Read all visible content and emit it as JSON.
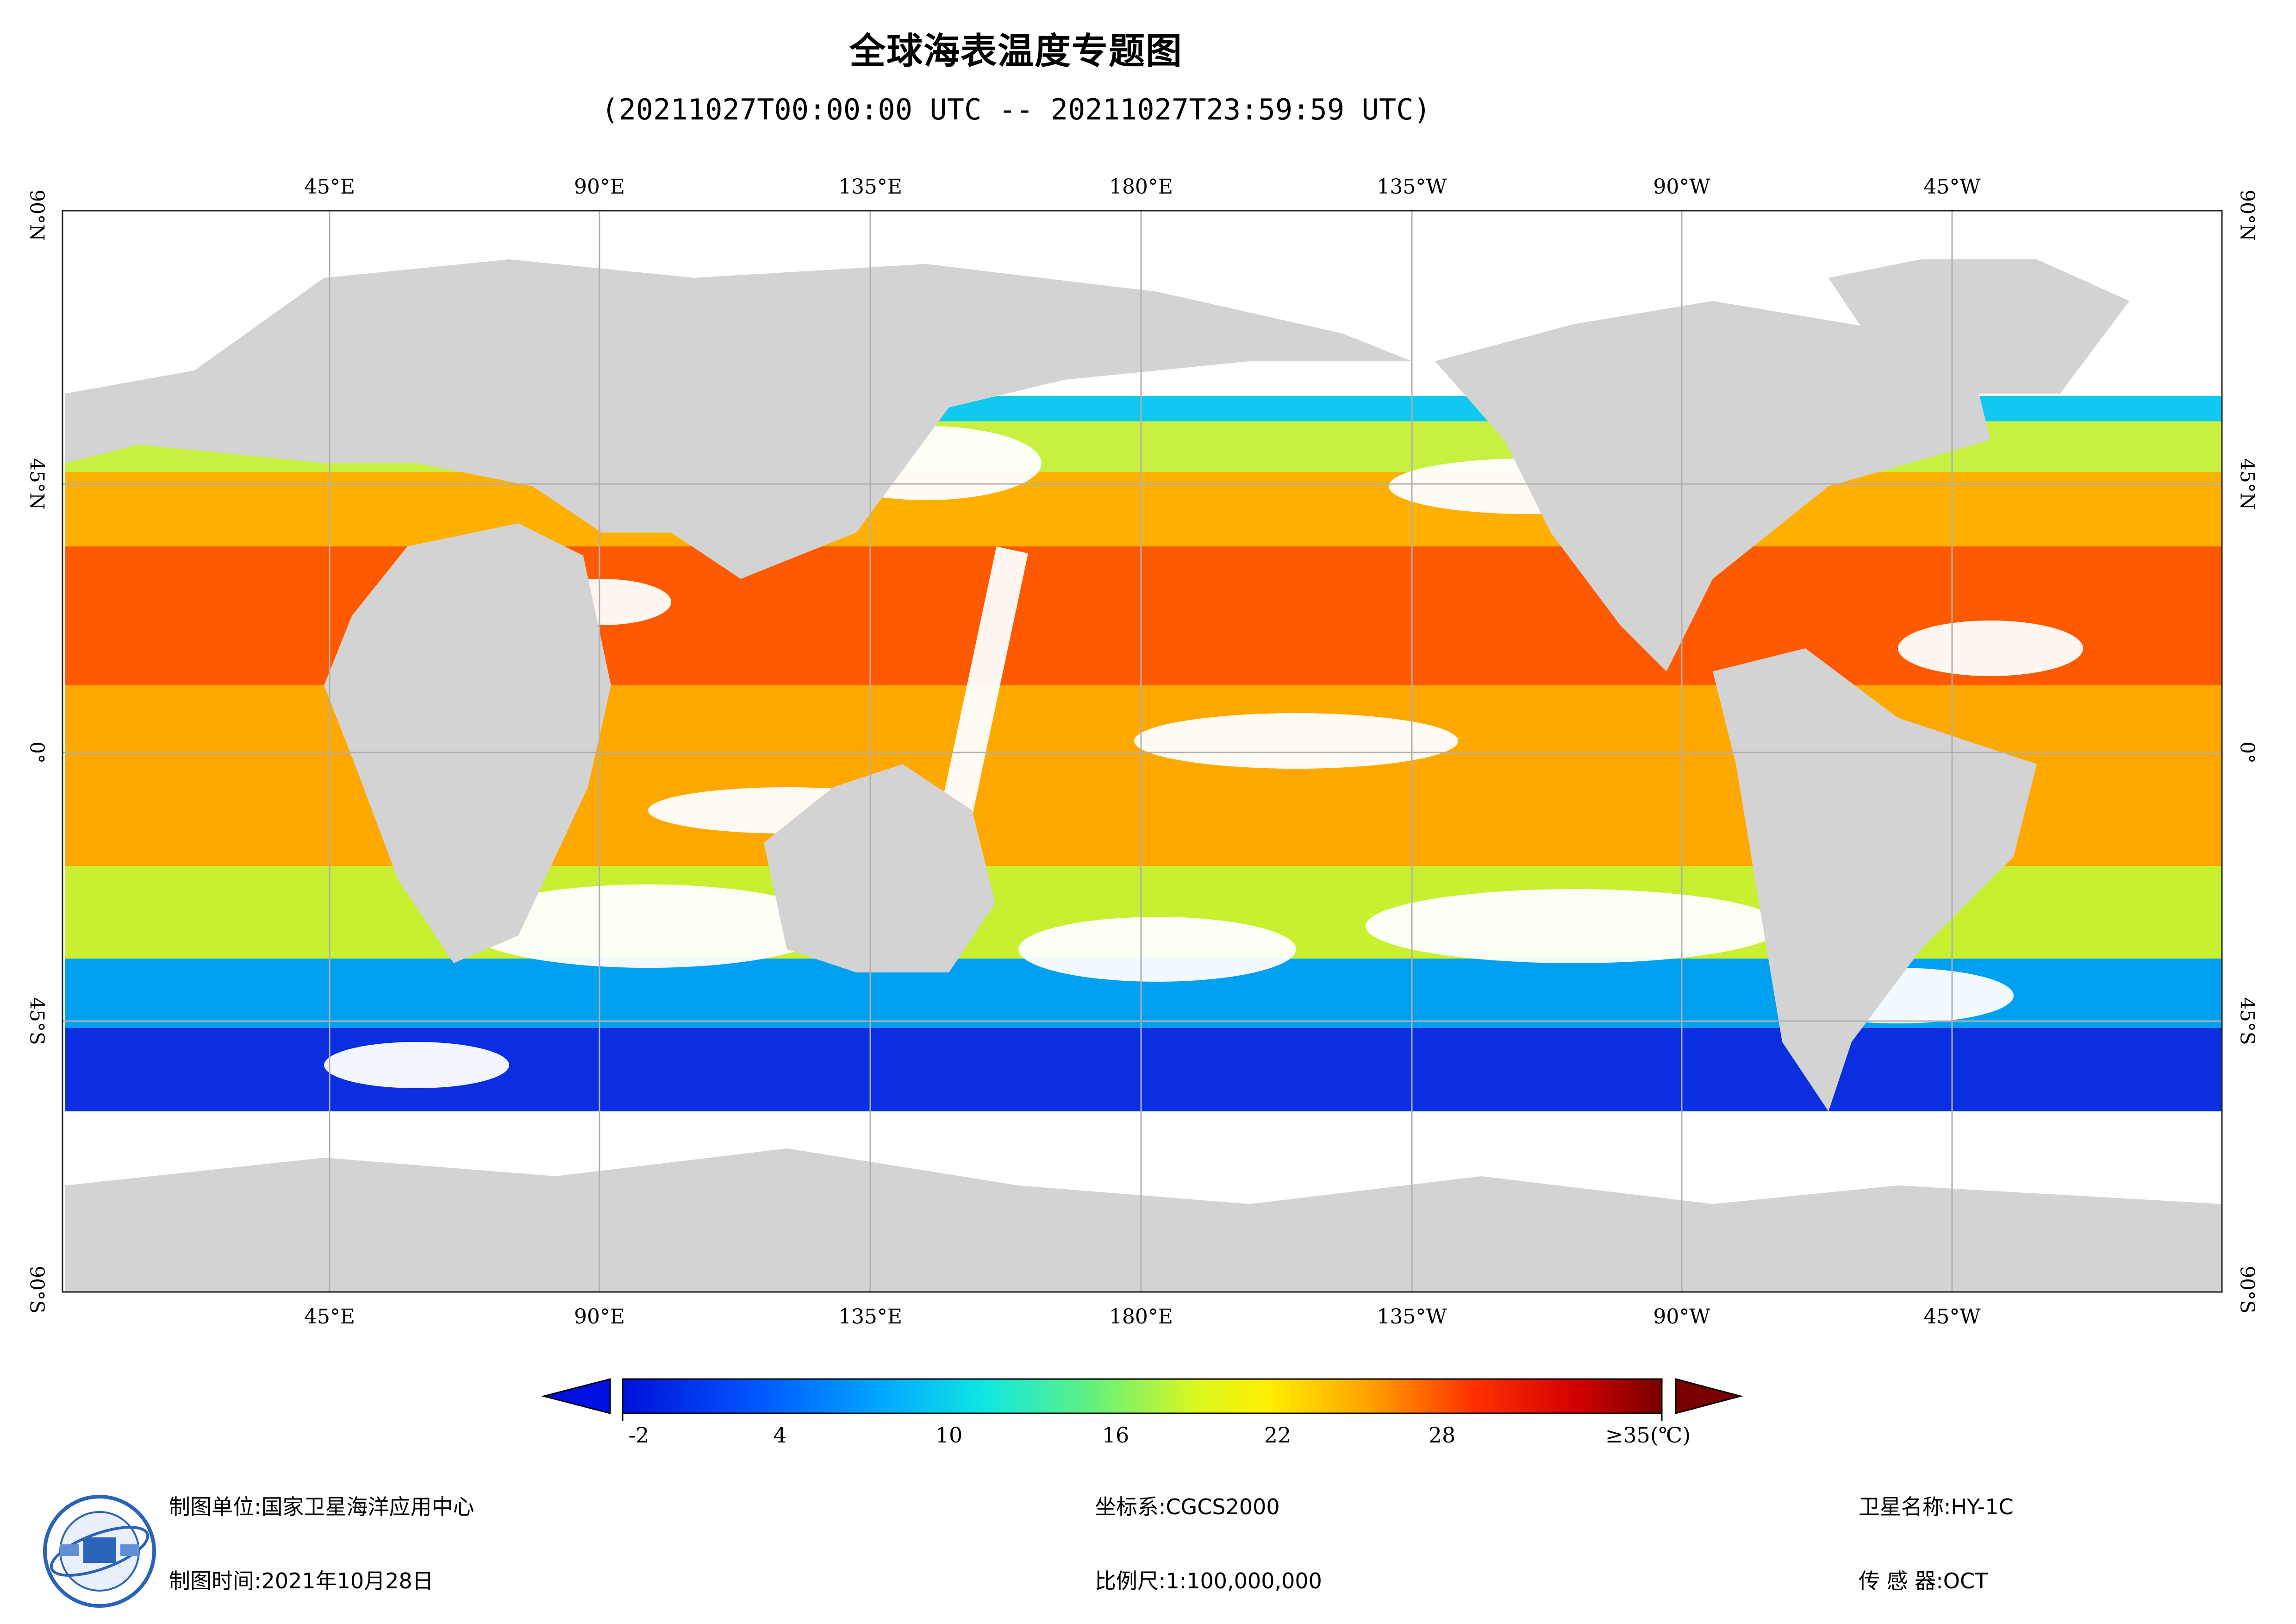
{
  "title": "全球海表温度专题图",
  "subtitle": "(20211027T00:00:00 UTC -- 20211027T23:59:59 UTC)",
  "lon_labels": [
    "45°E",
    "90°E",
    "135°E",
    "180°E",
    "135°W",
    "90°W",
    "45°W"
  ],
  "lat_labels": [
    "90°N",
    "45°N",
    "0°",
    "45°S",
    "90°S"
  ],
  "colorbar": {
    "ticks": [
      "-2",
      "4",
      "10",
      "16",
      "22",
      "28",
      "≥35(℃)"
    ],
    "min": -2,
    "max": 35
  },
  "footer": {
    "unit_label": "制图单位:国家卫星海洋应用中心",
    "time_label": "制图时间:2021年10月28日",
    "crs_label": "坐标系:CGCS2000",
    "scale_label": "比例尺:1:100,000,000",
    "satellite_label": "卫星名称:HY-1C",
    "sensor_label": "传 感 器:OCT"
  },
  "colors": {
    "land": "#d3d3d4",
    "cloud": "#ffffff",
    "grid": "#b8b8b8"
  }
}
